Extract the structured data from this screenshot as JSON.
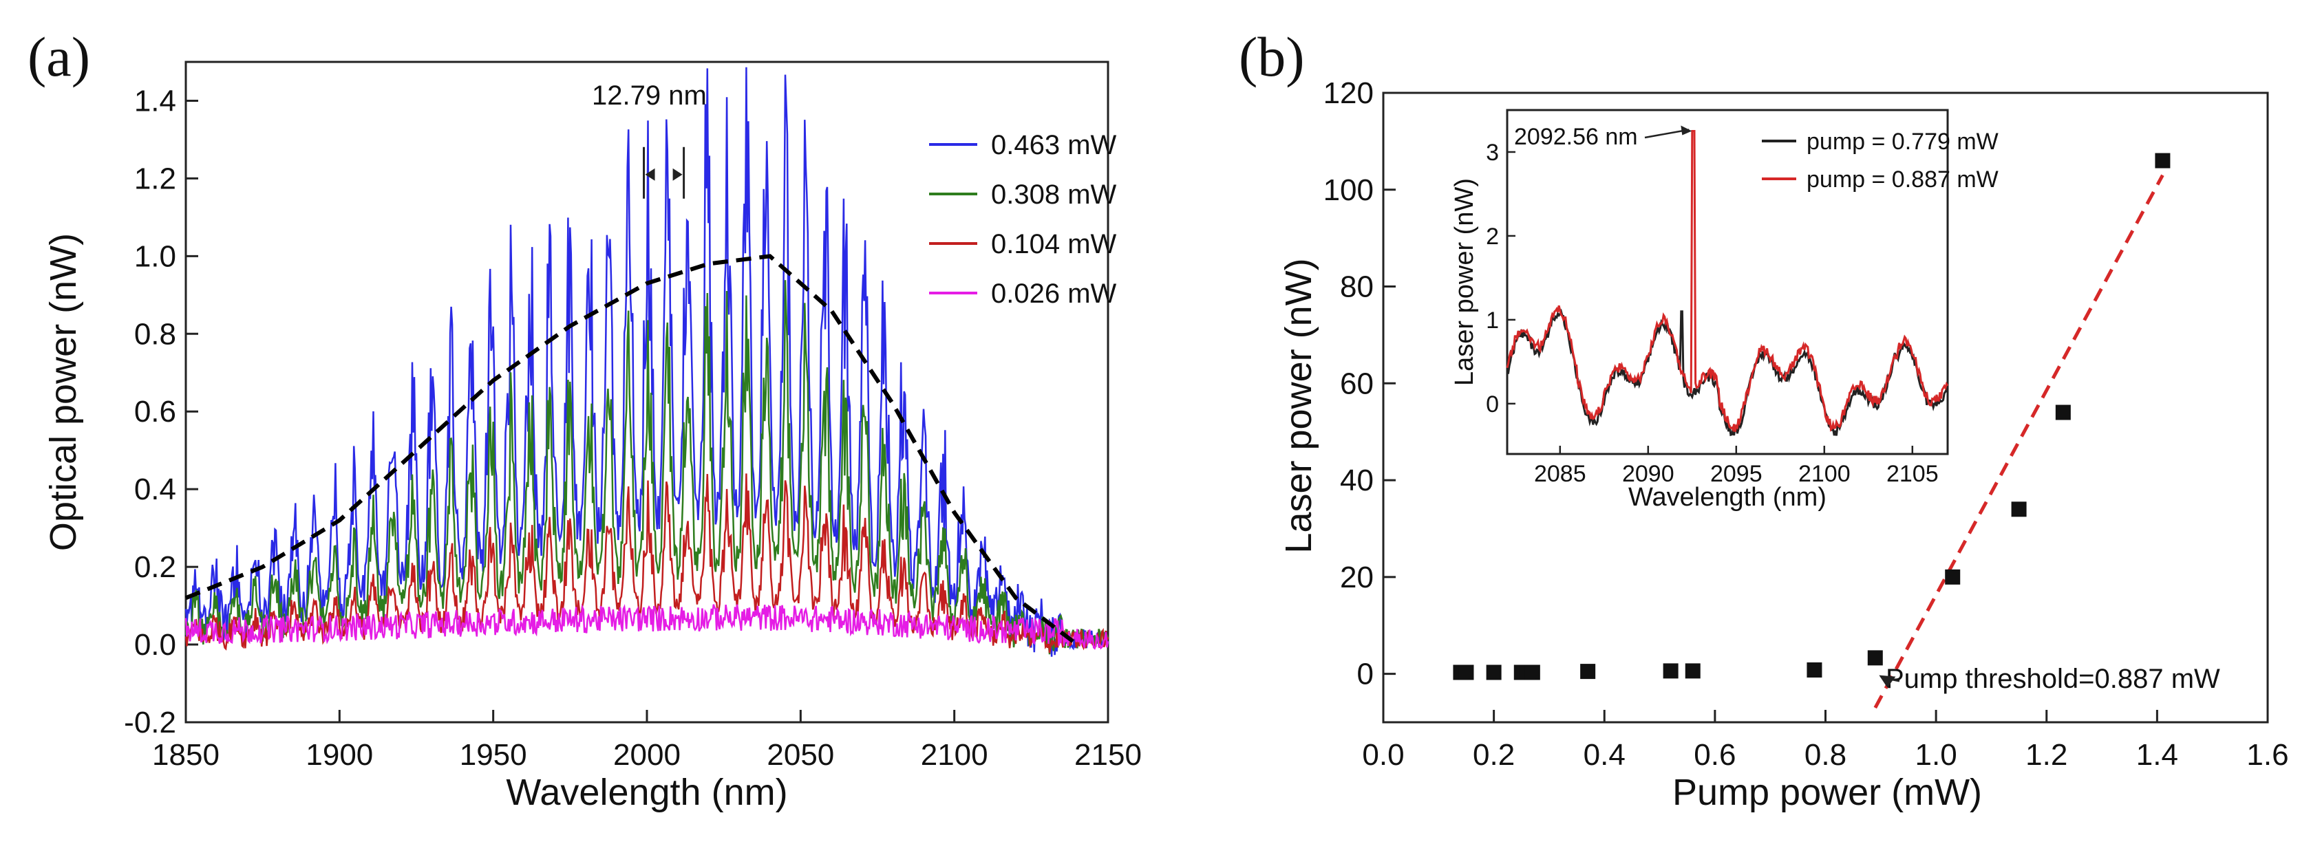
{
  "chart_data": [
    {
      "type": "line",
      "panel_label": "(a)",
      "xlabel": "Wavelength (nm)",
      "ylabel": "Optical power (nW)",
      "xlim": [
        1850,
        2150
      ],
      "ylim": [
        -0.2,
        1.5
      ],
      "xticks": [
        1850,
        1900,
        1950,
        2000,
        2050,
        2100,
        2150
      ],
      "yticks": [
        -0.2,
        0.0,
        0.2,
        0.4,
        0.6,
        0.8,
        1.0,
        1.2,
        1.4
      ],
      "ytick_labels": [
        "-0.2",
        "0.0",
        "0.2",
        "0.4",
        "0.6",
        "0.8",
        "1.0",
        "1.2",
        "1.4"
      ],
      "series": [
        {
          "name": "0.463 mW",
          "color": "#2a2ae6",
          "scale": 1.0
        },
        {
          "name": "0.308 mW",
          "color": "#2e7d1e",
          "scale": 0.62
        },
        {
          "name": "0.104 mW",
          "color": "#c21f1f",
          "scale": 0.3
        },
        {
          "name": "0.026 mW",
          "color": "#e51de5",
          "scale": 0.08
        }
      ],
      "envelope": {
        "style": "dashed",
        "color": "#000000",
        "x": [
          1850,
          1875,
          1900,
          1925,
          1950,
          1975,
          2000,
          2020,
          2040,
          2060,
          2080,
          2100,
          2120,
          2140
        ],
        "y": [
          0.12,
          0.2,
          0.32,
          0.5,
          0.68,
          0.82,
          0.93,
          0.98,
          1.0,
          0.86,
          0.62,
          0.34,
          0.12,
          0.0
        ]
      },
      "annotation": {
        "text": "12.79 nm",
        "x1": 1999,
        "x2": 2012,
        "y": 1.21
      }
    },
    {
      "type": "scatter",
      "panel_label": "(b)",
      "xlabel": "Pump power (mW)",
      "ylabel": "Laser power (nW)",
      "xlim": [
        0.0,
        1.6
      ],
      "ylim": [
        -10,
        120
      ],
      "xticks": [
        0.0,
        0.2,
        0.4,
        0.6,
        0.8,
        1.0,
        1.2,
        1.4,
        1.6
      ],
      "xtick_labels": [
        "0.0",
        "0.2",
        "0.4",
        "0.6",
        "0.8",
        "1.0",
        "1.2",
        "1.4",
        "1.6"
      ],
      "yticks": [
        0,
        20,
        40,
        60,
        80,
        100,
        120
      ],
      "points": {
        "x": [
          0.14,
          0.15,
          0.2,
          0.25,
          0.26,
          0.27,
          0.37,
          0.52,
          0.56,
          0.78,
          0.89,
          1.03,
          1.15,
          1.23,
          1.41
        ],
        "y": [
          0.3,
          0.3,
          0.3,
          0.3,
          0.3,
          0.3,
          0.5,
          0.6,
          0.6,
          0.8,
          3.3,
          20,
          34,
          54,
          106
        ]
      },
      "fit_line": {
        "x": [
          0.89,
          1.41
        ],
        "y": [
          -7,
          103
        ],
        "color": "#d62828",
        "style": "dashed"
      },
      "annotation": {
        "text": "Pump threshold=0.887 mW",
        "x": 0.887,
        "y": 0
      },
      "inset": {
        "xlabel": "Wavelength (nm)",
        "ylabel": "Laser power (nW)",
        "xlim": [
          2082,
          2107
        ],
        "ylim": [
          -0.6,
          3.5
        ],
        "xticks": [
          2085,
          2090,
          2095,
          2100,
          2105
        ],
        "yticks": [
          0,
          1,
          2,
          3
        ],
        "peak_label": "2092.56 nm",
        "peak_x": 2092.56,
        "peak_y": 3.25,
        "series": [
          {
            "name": "pump = 0.779 mW",
            "color": "#222222"
          },
          {
            "name": "pump = 0.887 mW",
            "color": "#d62828"
          }
        ]
      }
    }
  ]
}
